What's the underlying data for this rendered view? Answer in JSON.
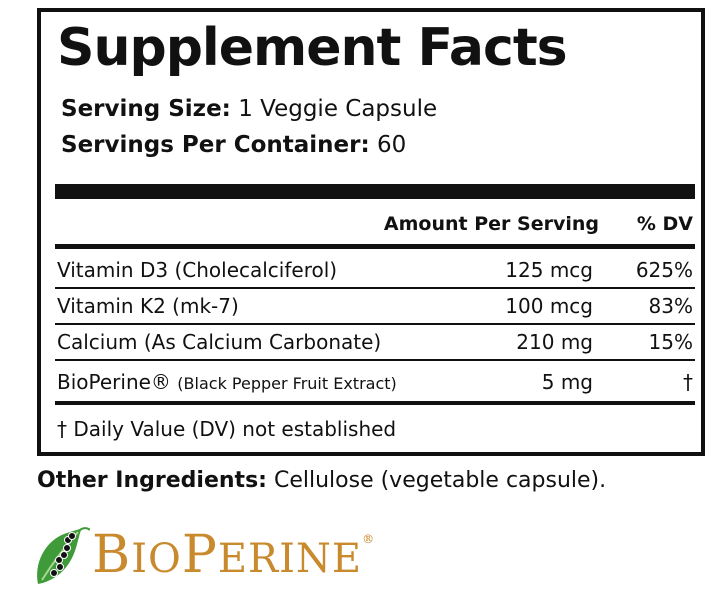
{
  "title": "Supplement Facts",
  "serving_size": {
    "label": "Serving Size:",
    "value": "1 Veggie Capsule"
  },
  "servings_per_container": {
    "label": "Servings Per Container:",
    "value": "60"
  },
  "table": {
    "headers": {
      "amount": "Amount Per Serving",
      "dv": "% DV"
    },
    "rows": [
      {
        "name": "Vitamin D3 (Cholecalciferol)",
        "amount": "125 mcg",
        "dv": "625%"
      },
      {
        "name": "Vitamin K2 (mk-7)",
        "amount": "100 mcg",
        "dv": "83%"
      },
      {
        "name": "Calcium (As Calcium Carbonate)",
        "amount": "210 mg",
        "dv": "15%"
      },
      {
        "name": "BioPerine®",
        "name_detail": "(Black Pepper Fruit Extract)",
        "amount": "5 mg",
        "dv": "†"
      }
    ]
  },
  "footnote": "† Daily Value (DV) not established",
  "other_ingredients": {
    "label": "Other Ingredients:",
    "value": "Cellulose (vegetable capsule)."
  },
  "logo": {
    "text": "BioPerine®",
    "color": "#c98a2e",
    "leaf_color": "#3f9a3a",
    "icon": "pepper-leaf-icon"
  }
}
